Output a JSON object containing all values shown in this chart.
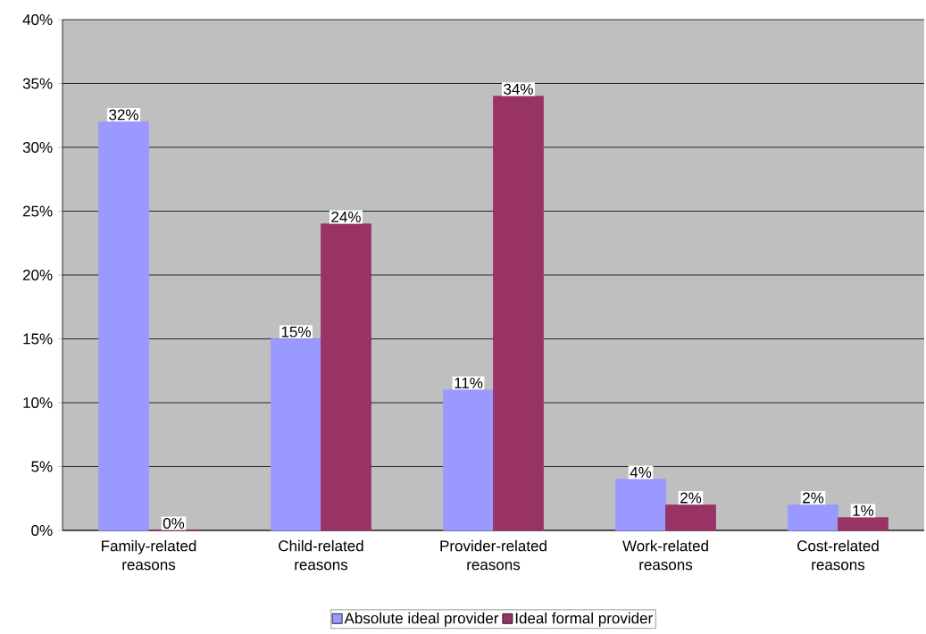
{
  "chart_data": {
    "type": "bar",
    "categories": [
      "Family-related reasons",
      "Child-related reasons",
      "Provider-related reasons",
      "Work-related reasons",
      "Cost-related reasons"
    ],
    "series": [
      {
        "name": "Absolute ideal provider",
        "color": "#9999ff",
        "values": [
          32,
          15,
          11,
          4,
          2
        ],
        "value_labels": [
          "32%",
          "15%",
          "11%",
          "4%",
          "2%"
        ]
      },
      {
        "name": "Ideal formal provider",
        "color": "#993366",
        "values": [
          0,
          24,
          34,
          2,
          1
        ],
        "value_labels": [
          "0%",
          "24%",
          "34%",
          "2%",
          "1%"
        ]
      }
    ],
    "ylim": [
      0,
      40
    ],
    "yticks": [
      {
        "value": 0,
        "label": "0%"
      },
      {
        "value": 5,
        "label": "5%"
      },
      {
        "value": 10,
        "label": "10%"
      },
      {
        "value": 15,
        "label": "15%"
      },
      {
        "value": 20,
        "label": "20%"
      },
      {
        "value": 25,
        "label": "25%"
      },
      {
        "value": 30,
        "label": "30%"
      },
      {
        "value": 35,
        "label": "35%"
      },
      {
        "value": 40,
        "label": "40%"
      }
    ],
    "grid": "y",
    "legend": "bottom"
  }
}
